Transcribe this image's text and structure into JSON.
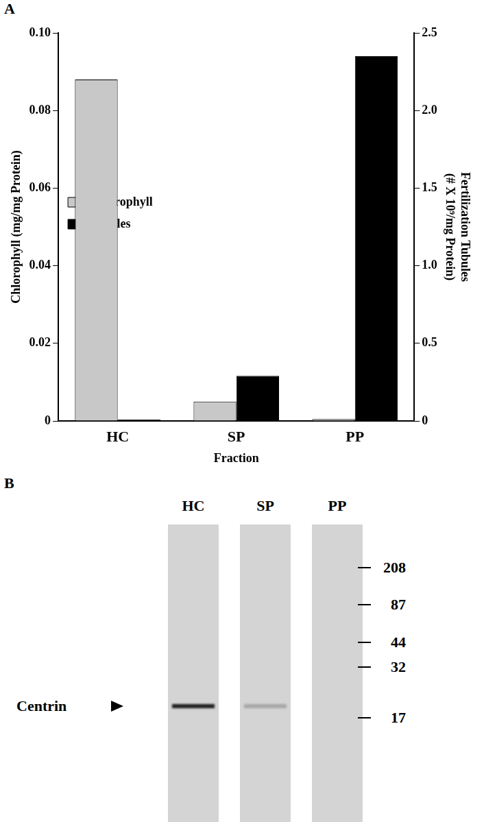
{
  "panel_labels": [
    "A",
    "B"
  ],
  "chart_data": {
    "type": "bar",
    "categories": [
      "HC",
      "SP",
      "PP"
    ],
    "x_label": "Fraction",
    "y_label": "Chlorophyll (mg/mg Protein)",
    "y2_label": [
      "Fertilization Tubules",
      "(# X 10⁹/mg Protein)"
    ],
    "series": [
      {
        "name": "Chlorophyll",
        "color": "#c8c8c8",
        "values": [
          0.088,
          0.005,
          0.0005
        ]
      },
      {
        "name": "Tubules",
        "color": "#000000",
        "values": [
          0.01,
          0.29,
          2.35
        ],
        "axis": "y2"
      }
    ],
    "ylim": [
      0,
      0.1
    ],
    "yticks": [
      0,
      0.02,
      0.04,
      0.06,
      0.08,
      {
        "value": 0.1,
        "label": "0.10"
      }
    ],
    "y2lim": [
      0,
      2.5
    ],
    "y2ticks": [
      0,
      0.5,
      {
        "value": 1,
        "label": "1.0"
      },
      1.5,
      {
        "value": 2,
        "label": "2.0"
      },
      2.5
    ],
    "legend": "top",
    "grid": false
  },
  "blot": {
    "lanes": [
      "HC",
      "SP",
      "PP"
    ],
    "markers": [
      208,
      87,
      44,
      32,
      17
    ],
    "band_label": "Centrin",
    "band_intensity": [
      1,
      0.25,
      0
    ]
  }
}
